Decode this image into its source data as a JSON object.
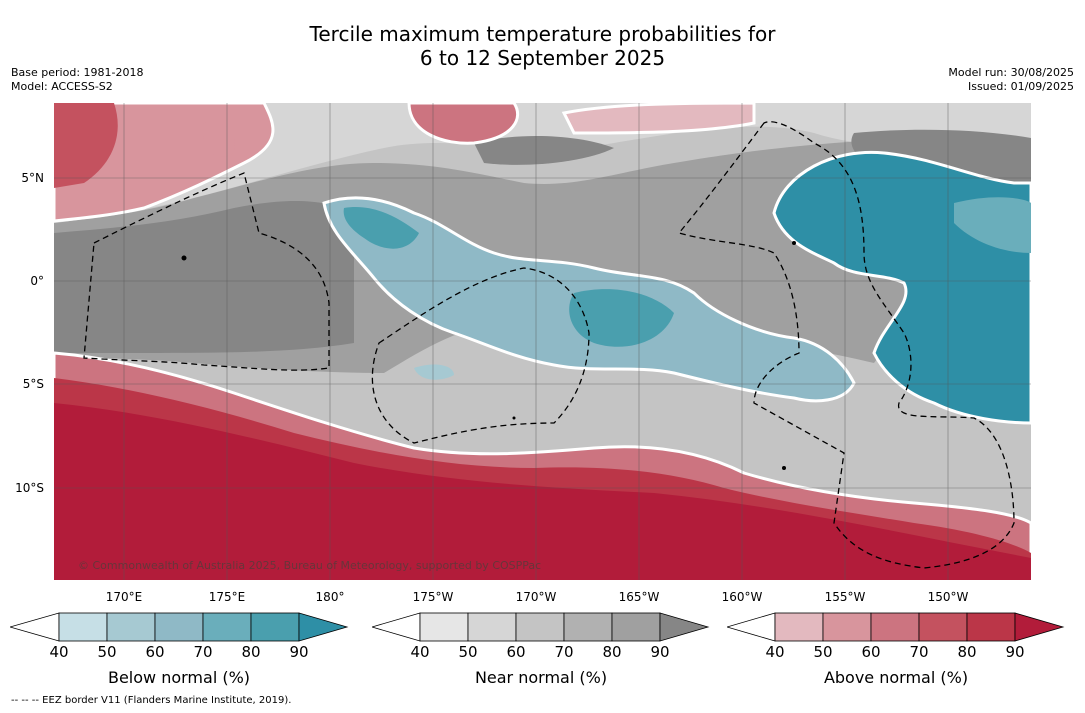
{
  "title": {
    "line1": "Tercile maximum temperature probabilities for",
    "line2": "6 to 12 September 2025"
  },
  "meta": {
    "base_period": "Base period: 1981-2018",
    "model": "Model: ACCESS-S2",
    "model_run": "Model run: 30/08/2025",
    "issued": "Issued: 01/09/2025"
  },
  "map": {
    "lat_labels": [
      "5°N",
      "0°",
      "5°S",
      "10°S"
    ],
    "lon_labels": [
      "170°E",
      "175°E",
      "180°",
      "175°W",
      "170°W",
      "165°W",
      "160°W",
      "155°W",
      "150°W"
    ],
    "copyright": "© Commonwealth of Australia 2025, Bureau of Meteorology, supported by COSPPac"
  },
  "colorbars": [
    {
      "title": "Below normal (%)",
      "ticks": [
        "40",
        "50",
        "60",
        "70",
        "80",
        "90"
      ],
      "colors": [
        "#c6dfe6",
        "#a6c9d2",
        "#8fb9c6",
        "#6aaebb",
        "#4a9fae",
        "#2e8fa6"
      ]
    },
    {
      "title": "Near normal (%)",
      "ticks": [
        "40",
        "50",
        "60",
        "70",
        "80",
        "90"
      ],
      "colors": [
        "#e6e6e6",
        "#d6d6d6",
        "#c4c4c4",
        "#b1b1b1",
        "#a0a0a0",
        "#868686"
      ]
    },
    {
      "title": "Above normal (%)",
      "ticks": [
        "40",
        "50",
        "60",
        "70",
        "80",
        "90"
      ],
      "colors": [
        "#e3b9bf",
        "#d8959d",
        "#cc7480",
        "#c4525f",
        "#bb3648",
        "#b21c3a"
      ]
    }
  ],
  "footnote": "--  --  -- EEZ border V11 (Flanders Marine Institute, 2019)."
}
